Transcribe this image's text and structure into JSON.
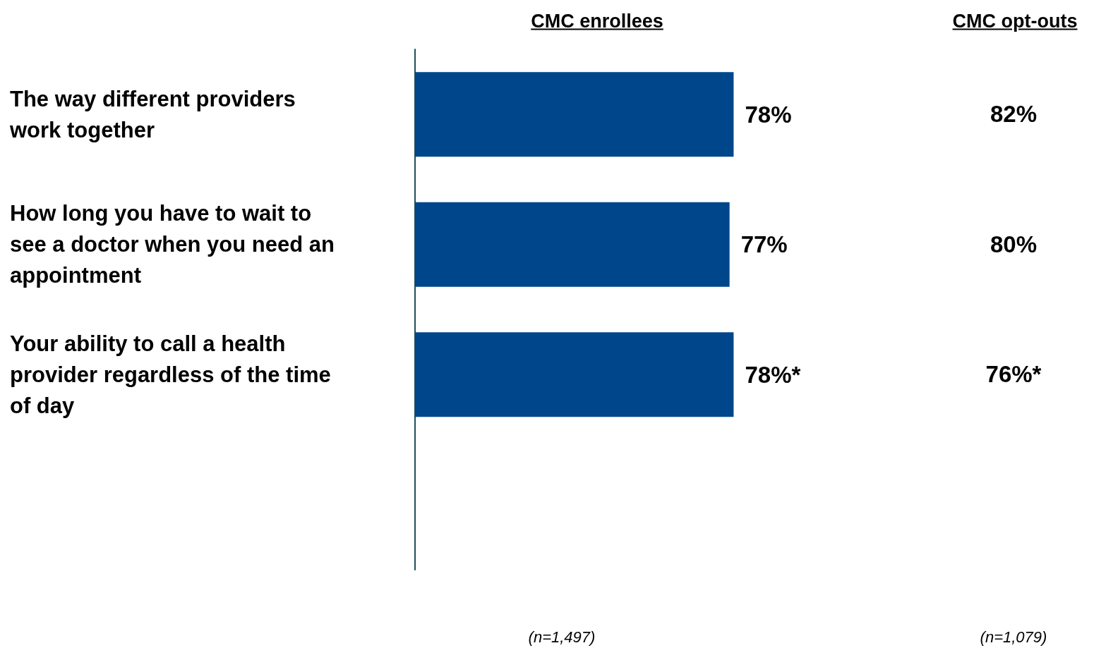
{
  "chart_data": {
    "type": "bar",
    "orientation": "horizontal",
    "categories": [
      "The way different providers work together",
      "How long you have to wait to see a doctor when you need an appointment",
      "Your ability to call a health provider regardless of the time of day"
    ],
    "series": [
      {
        "name": "CMC enrollees",
        "color": "#00468b",
        "values": [
          78,
          77,
          78
        ],
        "value_labels": [
          "78%",
          "77%",
          "78%*"
        ]
      }
    ],
    "tick_labels": "y",
    "grid": false,
    "annotations": [
      "CMC opt-outs",
      "82%",
      "80%",
      "76%*",
      "(n=1,497)",
      "(n=1,079)"
    ]
  }
}
